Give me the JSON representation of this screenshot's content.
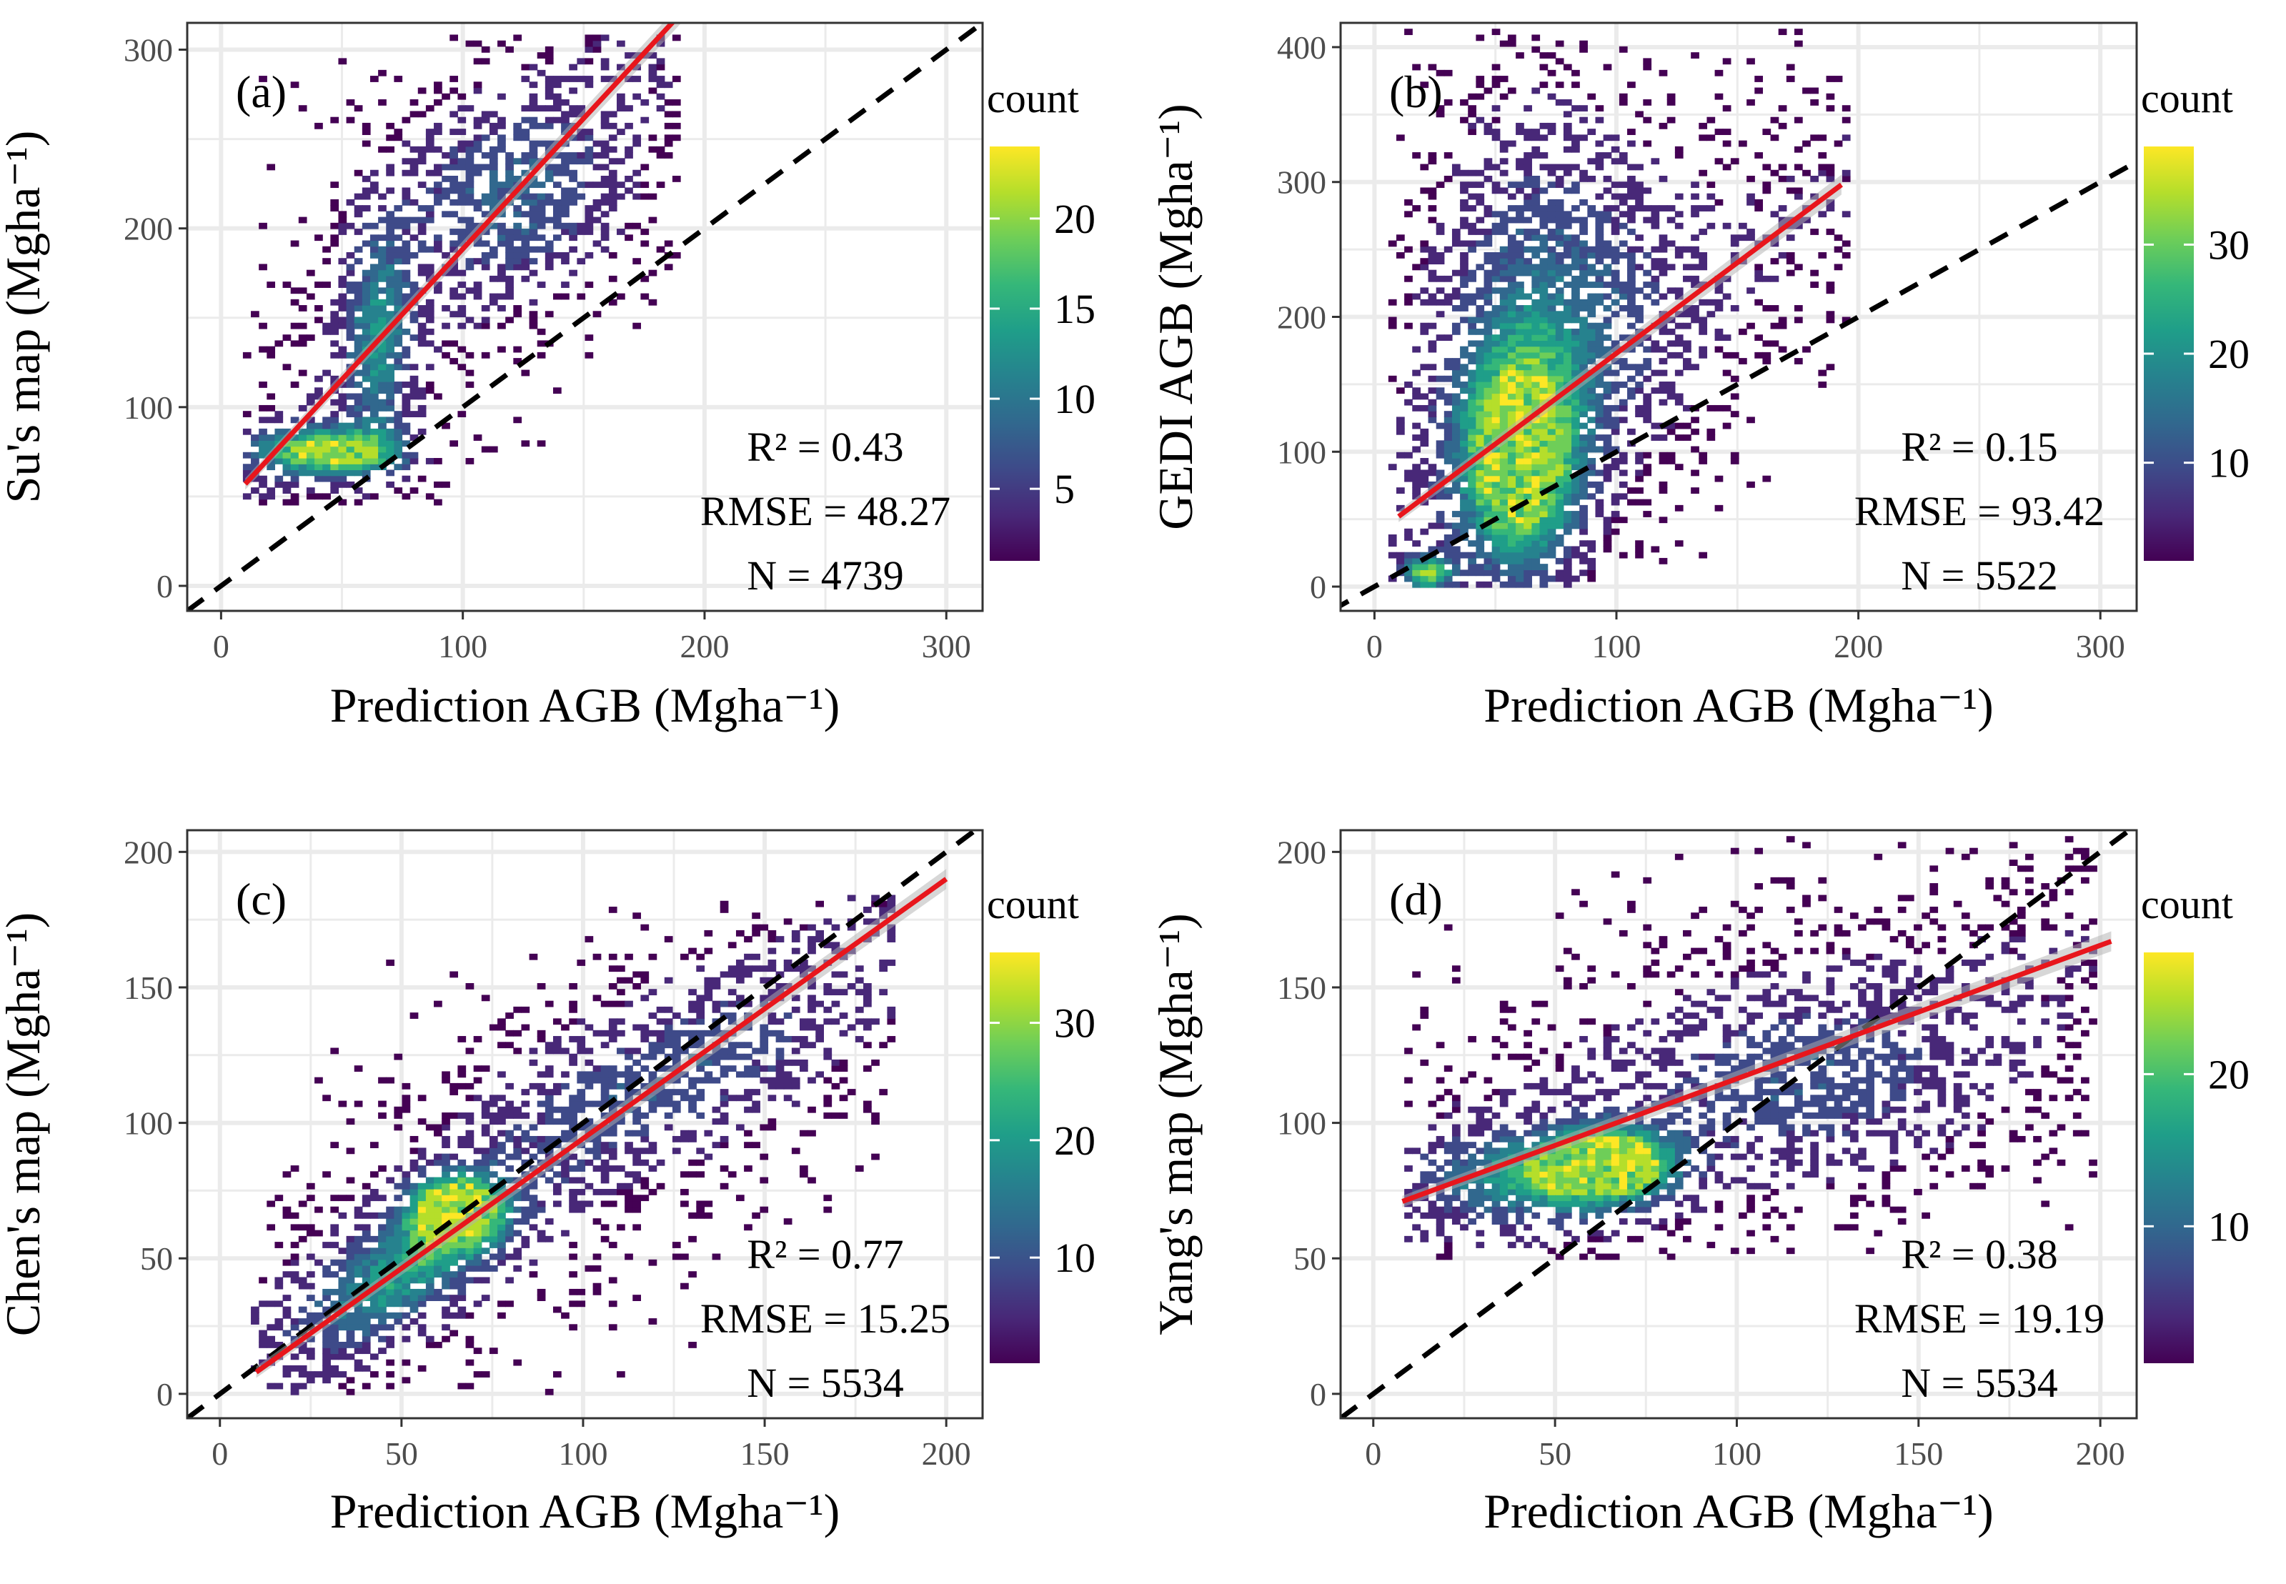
{
  "chart_data": [
    {
      "type": "heatmap",
      "panel_label": "(a)",
      "xlabel": "Prediction AGB (Mgha⁻¹)",
      "ylabel": "Su's map (Mgha⁻¹)",
      "xlim": [
        -14,
        315
      ],
      "ylim": [
        -14,
        315
      ],
      "xticks": [
        0,
        100,
        200,
        300
      ],
      "yticks": [
        0,
        100,
        200,
        300
      ],
      "stats": {
        "r2": "R² = 0.43",
        "rmse": "RMSE = 48.27",
        "n": "N = 4739"
      },
      "legend": {
        "title": "count",
        "max": 24,
        "ticks": [
          5,
          10,
          15,
          20
        ]
      },
      "fit_line": {
        "x": [
          10,
          190
        ],
        "y": [
          57,
          320
        ]
      },
      "one_to_one": true,
      "clusters": [
        {
          "x": 45,
          "y": 75,
          "sx": 22,
          "sy": 10,
          "w": 1.0
        },
        {
          "x": 65,
          "y": 140,
          "sx": 10,
          "sy": 45,
          "w": 0.55
        },
        {
          "x": 120,
          "y": 220,
          "sx": 35,
          "sy": 40,
          "w": 0.35
        }
      ],
      "data_range": {
        "x": [
          10,
          190
        ],
        "y": [
          45,
          310
        ]
      }
    },
    {
      "type": "heatmap",
      "panel_label": "(b)",
      "xlabel": "Prediction AGB (Mgha⁻¹)",
      "ylabel": "GEDI AGB (Mgha⁻¹)",
      "xlim": [
        -14,
        315
      ],
      "ylim": [
        -18,
        418
      ],
      "xticks": [
        0,
        100,
        200,
        300
      ],
      "yticks": [
        0,
        100,
        200,
        300,
        400
      ],
      "stats": {
        "r2": "R² = 0.15",
        "rmse": "RMSE = 93.42",
        "n": "N = 5522"
      },
      "legend": {
        "title": "count",
        "max": 39,
        "ticks": [
          10,
          20,
          30
        ]
      },
      "fit_line": {
        "x": [
          10,
          193
        ],
        "y": [
          52,
          298
        ]
      },
      "one_to_one": true,
      "clusters": [
        {
          "x": 60,
          "y": 90,
          "sx": 18,
          "sy": 60,
          "w": 1.0
        },
        {
          "x": 22,
          "y": 10,
          "sx": 8,
          "sy": 10,
          "w": 0.8
        },
        {
          "x": 70,
          "y": 230,
          "sx": 35,
          "sy": 100,
          "w": 0.45
        }
      ],
      "data_range": {
        "x": [
          5,
          195
        ],
        "y": [
          0,
          415
        ]
      }
    },
    {
      "type": "heatmap",
      "panel_label": "(c)",
      "xlabel": "Prediction AGB (Mgha⁻¹)",
      "ylabel": "Chen's map (Mgha⁻¹)",
      "xlim": [
        -9,
        210
      ],
      "ylim": [
        -9,
        208
      ],
      "xticks": [
        0,
        50,
        100,
        150,
        200
      ],
      "yticks": [
        0,
        50,
        100,
        150,
        200
      ],
      "stats": {
        "r2": "R² = 0.77",
        "rmse": "RMSE = 15.25",
        "n": "N = 5534"
      },
      "legend": {
        "title": "count",
        "max": 36,
        "ticks": [
          10,
          20,
          30
        ]
      },
      "fit_line": {
        "x": [
          10,
          200
        ],
        "y": [
          8,
          190
        ]
      },
      "one_to_one": true,
      "clusters": [
        {
          "x": 65,
          "y": 68,
          "sx": 9,
          "sy": 9,
          "w": 1.0
        },
        {
          "x": 50,
          "y": 45,
          "sx": 18,
          "sy": 18,
          "w": 0.6,
          "corr": true
        },
        {
          "x": 120,
          "y": 115,
          "sx": 35,
          "sy": 25,
          "w": 0.3,
          "corr": true
        }
      ],
      "data_range": {
        "x": [
          8,
          185
        ],
        "y": [
          0,
          185
        ]
      }
    },
    {
      "type": "heatmap",
      "panel_label": "(d)",
      "xlabel": "Prediction AGB (Mgha⁻¹)",
      "ylabel": "Yang's map (Mgha⁻¹)",
      "xlim": [
        -9,
        210
      ],
      "ylim": [
        -9,
        208
      ],
      "xticks": [
        0,
        50,
        100,
        150,
        200
      ],
      "yticks": [
        0,
        50,
        100,
        150,
        200
      ],
      "stats": {
        "r2": "R² = 0.38",
        "rmse": "RMSE = 19.19",
        "n": "N = 5534"
      },
      "legend": {
        "title": "count",
        "max": 28,
        "ticks": [
          10,
          20
        ]
      },
      "fit_line": {
        "x": [
          8,
          203
        ],
        "y": [
          71,
          167
        ]
      },
      "one_to_one": true,
      "clusters": [
        {
          "x": 65,
          "y": 85,
          "sx": 12,
          "sy": 9,
          "w": 1.0
        },
        {
          "x": 45,
          "y": 80,
          "sx": 22,
          "sy": 12,
          "w": 0.6
        },
        {
          "x": 120,
          "y": 115,
          "sx": 35,
          "sy": 25,
          "w": 0.3
        }
      ],
      "data_range": {
        "x": [
          8,
          200
        ],
        "y": [
          50,
          205
        ]
      }
    }
  ],
  "colors": {
    "fit_line": "#e8161c",
    "one_to_one": "#000000",
    "gridline": "#ebebeb",
    "viridis": [
      "#440154",
      "#482878",
      "#3e4a89",
      "#31688e",
      "#26828e",
      "#1f9e89",
      "#35b779",
      "#6ece58",
      "#b5de2b",
      "#fde725"
    ]
  }
}
